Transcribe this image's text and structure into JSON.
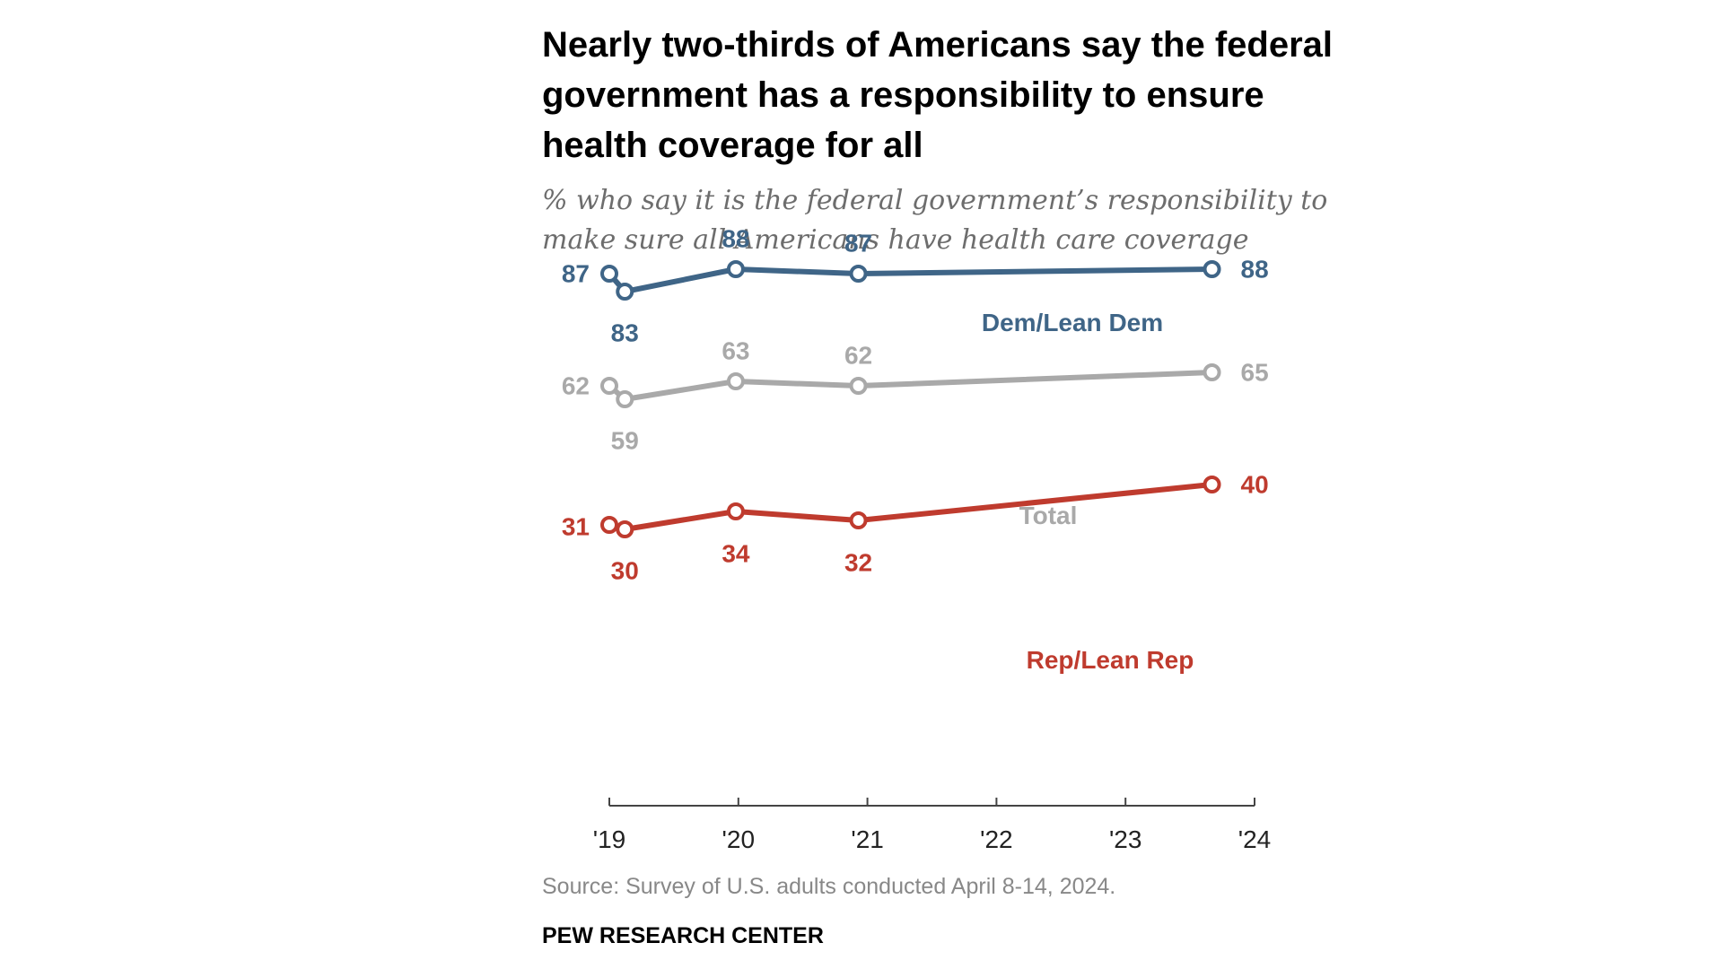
{
  "header": {
    "title": "Nearly two-thirds of Americans say the federal government has a responsibility to ensure health coverage for all",
    "subtitle": "% who say it is the federal government’s responsibility to make sure all Americans have health care coverage"
  },
  "footer": {
    "source": "Source: Survey of U.S. adults conducted April 8-14, 2024.",
    "brand": "PEW RESEARCH CENTER"
  },
  "colors": {
    "dem": "#3f6587",
    "total": "#a9a9a9",
    "rep": "#bf3b2e",
    "axis": "#444444"
  },
  "chart_data": {
    "type": "line",
    "title": "Nearly two-thirds of Americans say the federal government has a responsibility to ensure health coverage for all",
    "subtitle": "% who say it is the federal government’s responsibility to make sure all Americans have health care coverage",
    "xlabel": "",
    "ylabel": "",
    "x_tick_values": [
      2019,
      2020,
      2021,
      2022,
      2023,
      2024
    ],
    "x_tick_labels": [
      "'19",
      "'20",
      "'21",
      "'22",
      "'23",
      "'24"
    ],
    "xlim": [
      2019,
      2024
    ],
    "ylim": [
      0,
      100
    ],
    "grid": false,
    "series": [
      {
        "key": "dem",
        "name": "Dem/Lean Dem",
        "color": "#3f6587",
        "x": [
          2019.0,
          2019.12,
          2019.98,
          2020.93,
          2023.67
        ],
        "values": [
          87,
          83,
          88,
          87,
          88
        ],
        "labels": [
          "87",
          "83",
          "88",
          "87",
          "88"
        ]
      },
      {
        "key": "total",
        "name": "Total",
        "color": "#a9a9a9",
        "x": [
          2019.0,
          2019.12,
          2019.98,
          2020.93,
          2023.67
        ],
        "values": [
          62,
          59,
          63,
          62,
          65
        ],
        "labels": [
          "62",
          "59",
          "63",
          "62",
          "65"
        ]
      },
      {
        "key": "rep",
        "name": "Rep/Lean Rep",
        "color": "#bf3b2e",
        "x": [
          2019.0,
          2019.12,
          2019.98,
          2020.93,
          2023.67
        ],
        "values": [
          31,
          30,
          34,
          32,
          40
        ],
        "labels": [
          "31",
          "30",
          "34",
          "32",
          "40"
        ]
      }
    ]
  }
}
